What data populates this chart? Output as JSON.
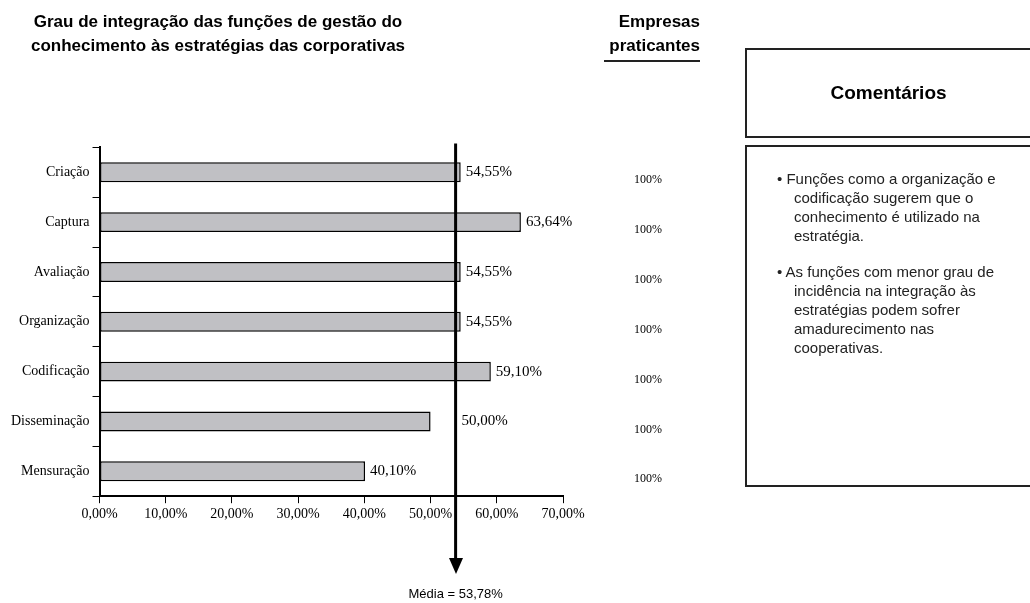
{
  "chart_data": {
    "type": "bar",
    "orientation": "horizontal",
    "title": "Grau de integração das funções de gestão do conhecimento às estratégias das corporativas",
    "categories": [
      "Criação",
      "Captura",
      "Avaliação",
      "Organização",
      "Codificação",
      "Disseminação",
      "Mensuração"
    ],
    "values": [
      54.55,
      63.64,
      54.55,
      54.55,
      59.1,
      50,
      40.1
    ],
    "value_labels": [
      "54,55%",
      "63,64%",
      "54,55%",
      "54,55%",
      "59,10%",
      "50,00%",
      "40,10%"
    ],
    "color": "#c0c0c4",
    "xlim": [
      0,
      70
    ],
    "xticks": [
      {
        "value": 0,
        "label": "0,00%"
      },
      {
        "value": 10,
        "label": "10,00%"
      },
      {
        "value": 20,
        "label": "20,00%"
      },
      {
        "value": 30,
        "label": "30,00%"
      },
      {
        "value": 40,
        "label": "40,00%"
      },
      {
        "value": 50,
        "label": "50,00%"
      },
      {
        "value": 60,
        "label": "60,00%"
      },
      {
        "value": 70,
        "label": "70,00%"
      }
    ],
    "grid": false,
    "legend": false,
    "ref_lines": [
      {
        "axis": "x",
        "value": 53.78,
        "label": "Média = 53,78%"
      }
    ],
    "annotations": [
      "Empresas praticantes",
      "100%",
      "100%",
      "100%",
      "100%",
      "100%",
      "100%",
      "100%",
      "Comentários",
      "• Funções como a organização e codificação sugerem que o conhecimento é utilizado na  estratégia.",
      "• As funções com menor grau de incidência na integração às estratégias podem sofrer amadurecimento nas cooperativas."
    ]
  }
}
